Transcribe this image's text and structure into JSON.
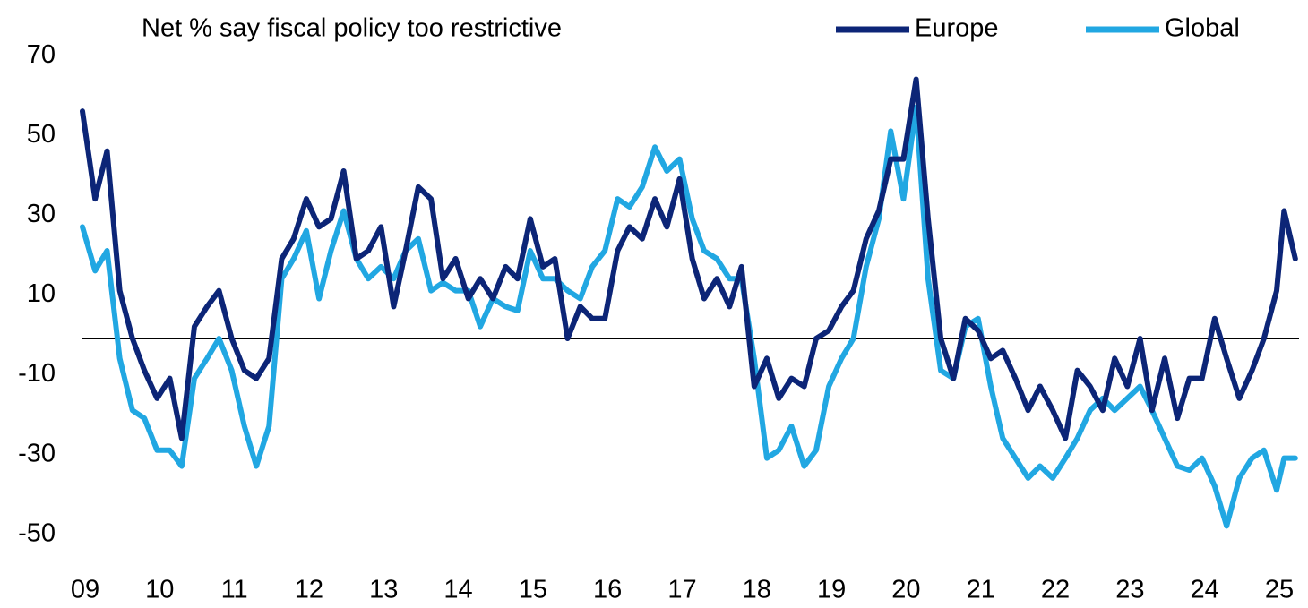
{
  "chart_data": {
    "type": "line",
    "title": "Net % say fiscal policy too restrictive",
    "legend": "top-right",
    "x": [
      2009,
      2009.17,
      2009.33,
      2009.5,
      2009.67,
      2009.83,
      2010,
      2010.17,
      2010.33,
      2010.5,
      2010.67,
      2010.83,
      2011,
      2011.17,
      2011.33,
      2011.5,
      2011.67,
      2011.83,
      2012,
      2012.17,
      2012.33,
      2012.5,
      2012.67,
      2012.83,
      2013,
      2013.17,
      2013.33,
      2013.5,
      2013.67,
      2013.83,
      2014,
      2014.17,
      2014.33,
      2014.5,
      2014.67,
      2014.83,
      2015,
      2015.17,
      2015.33,
      2015.5,
      2015.67,
      2015.83,
      2016,
      2016.17,
      2016.33,
      2016.5,
      2016.67,
      2016.83,
      2017,
      2017.17,
      2017.33,
      2017.5,
      2017.67,
      2017.83,
      2018,
      2018.17,
      2018.33,
      2018.5,
      2018.67,
      2018.83,
      2019,
      2019.17,
      2019.33,
      2019.5,
      2019.67,
      2019.83,
      2020,
      2020.17,
      2020.33,
      2020.5,
      2020.67,
      2020.83,
      2021,
      2021.17,
      2021.33,
      2021.5,
      2021.67,
      2021.83,
      2022,
      2022.17,
      2022.33,
      2022.5,
      2022.67,
      2022.83,
      2023,
      2023.17,
      2023.33,
      2023.5,
      2023.67,
      2023.83,
      2024,
      2024.17,
      2024.33,
      2024.5,
      2024.67,
      2024.83,
      2025,
      2025.1,
      2025.25
    ],
    "series": [
      {
        "name": "Europe",
        "color": "#0c2577",
        "values": [
          57,
          35,
          47,
          12,
          0,
          -8,
          -15,
          -10,
          -25,
          3,
          8,
          12,
          0,
          -8,
          -10,
          -5,
          20,
          25,
          35,
          28,
          30,
          42,
          20,
          22,
          28,
          8,
          22,
          38,
          35,
          15,
          20,
          10,
          15,
          10,
          18,
          15,
          30,
          18,
          20,
          0,
          8,
          5,
          5,
          22,
          28,
          25,
          35,
          28,
          40,
          20,
          10,
          15,
          8,
          18,
          -12,
          -5,
          -15,
          -10,
          -12,
          0,
          2,
          8,
          12,
          25,
          32,
          45,
          45,
          65,
          30,
          0,
          -10,
          5,
          2,
          -5,
          -3,
          -10,
          -18,
          -12,
          -18,
          -25,
          -8,
          -12,
          -18,
          -5,
          -12,
          0,
          -18,
          -5,
          -20,
          -10,
          -10,
          5,
          -5,
          -15,
          -8,
          0,
          12,
          32,
          20
        ]
      },
      {
        "name": "Global",
        "color": "#21a7e2",
        "values": [
          28,
          17,
          22,
          -5,
          -18,
          -20,
          -28,
          -28,
          -32,
          -10,
          -5,
          0,
          -8,
          -22,
          -32,
          -22,
          15,
          20,
          27,
          10,
          22,
          32,
          20,
          15,
          18,
          15,
          22,
          25,
          12,
          14,
          12,
          12,
          3,
          10,
          8,
          7,
          22,
          15,
          15,
          12,
          10,
          18,
          22,
          35,
          33,
          38,
          48,
          42,
          45,
          30,
          22,
          20,
          15,
          15,
          -5,
          -30,
          -28,
          -22,
          -32,
          -28,
          -12,
          -5,
          0,
          18,
          30,
          52,
          35,
          58,
          15,
          -8,
          -10,
          3,
          5,
          -12,
          -25,
          -30,
          -35,
          -32,
          -35,
          -30,
          -25,
          -18,
          -15,
          -18,
          -15,
          -12,
          -18,
          -25,
          -32,
          -33,
          -30,
          -37,
          -47,
          -35,
          -30,
          -28,
          -38,
          -30,
          -30
        ]
      }
    ],
    "xlim": [
      2009,
      2025.3
    ],
    "xticks": [
      {
        "value": 2009,
        "label": "09"
      },
      {
        "value": 2010,
        "label": "10"
      },
      {
        "value": 2011,
        "label": "11"
      },
      {
        "value": 2012,
        "label": "12"
      },
      {
        "value": 2013,
        "label": "13"
      },
      {
        "value": 2014,
        "label": "14"
      },
      {
        "value": 2015,
        "label": "15"
      },
      {
        "value": 2016,
        "label": "16"
      },
      {
        "value": 2017,
        "label": "17"
      },
      {
        "value": 2018,
        "label": "18"
      },
      {
        "value": 2019,
        "label": "19"
      },
      {
        "value": 2020,
        "label": "20"
      },
      {
        "value": 2021,
        "label": "21"
      },
      {
        "value": 2022,
        "label": "22"
      },
      {
        "value": 2023,
        "label": "23"
      },
      {
        "value": 2024,
        "label": "24"
      },
      {
        "value": 2025,
        "label": "25"
      }
    ],
    "ylim": [
      -55,
      75
    ],
    "yticks": [
      -50,
      -30,
      -10,
      10,
      30,
      50,
      70
    ]
  }
}
